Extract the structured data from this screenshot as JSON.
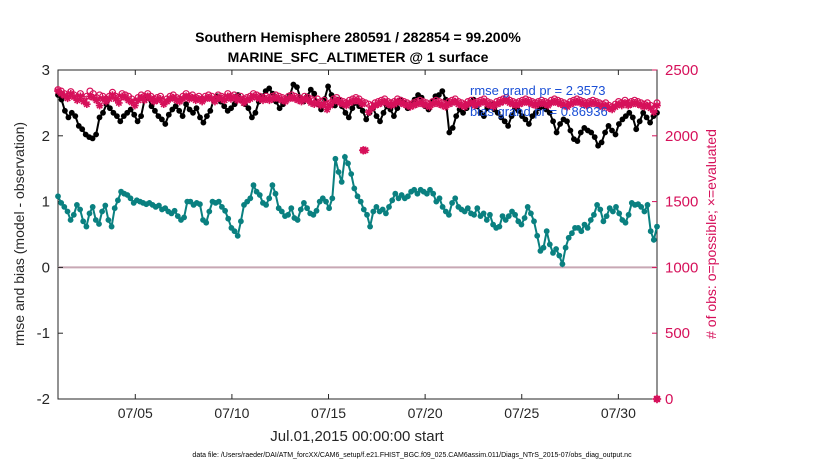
{
  "title_line1": "Southern Hemisphere 280591 / 282854 = 99.200%",
  "title_line2": "MARINE_SFC_ALTIMETER @ 1 surface",
  "footer": "data file: /Users/raeder/DAI/ATM_forcXX/CAM6_setup/f.e21.FHIST_BGC.f09_025.CAM6assim.011/Diags_NTrS_2015-07/obs_diag_output.nc",
  "colors": {
    "rmse": "#000000",
    "bias": "#0a8080",
    "obs": "#d6105a",
    "zero_line": "#c8a8b4",
    "legend_text": "#1a4fd6"
  },
  "chart_data": {
    "type": "line",
    "xlabel": "Jul.01,2015 00:00:00 start",
    "ylabel_left": "rmse and bias (model - observation)",
    "ylabel_right": "# of obs: o=possible; ×=evaluated",
    "xlim": [
      1,
      32
    ],
    "ylim_left": [
      -2,
      3
    ],
    "ylim_right": [
      0,
      2500
    ],
    "xticks": [
      {
        "value": 5,
        "label": "07/05"
      },
      {
        "value": 10,
        "label": "07/10"
      },
      {
        "value": 15,
        "label": "07/15"
      },
      {
        "value": 20,
        "label": "07/20"
      },
      {
        "value": 25,
        "label": "07/25"
      },
      {
        "value": 30,
        "label": "07/30"
      }
    ],
    "yticks_left": [
      "-2",
      "-1",
      "0",
      "1",
      "2",
      "3"
    ],
    "yticks_right": [
      "0",
      "500",
      "1000",
      "1500",
      "2000",
      "2500"
    ],
    "legend": [
      {
        "label": "rmse grand pr = 2.3573",
        "series": "rmse"
      },
      {
        "label": "bias grand pr = 0.86936",
        "series": "bias"
      }
    ],
    "rmse": [
      2.62,
      2.55,
      2.38,
      2.28,
      2.35,
      2.3,
      2.15,
      2.1,
      2.02,
      1.98,
      1.96,
      2.02,
      2.28,
      2.35,
      2.48,
      2.42,
      2.35,
      2.3,
      2.22,
      2.3,
      2.35,
      2.4,
      2.32,
      2.22,
      2.3,
      2.55,
      2.58,
      2.45,
      2.38,
      2.3,
      2.25,
      2.18,
      2.32,
      2.4,
      2.45,
      2.38,
      2.3,
      2.48,
      2.4,
      2.35,
      2.42,
      2.28,
      2.2,
      2.3,
      2.38,
      2.55,
      2.6,
      2.52,
      2.45,
      2.38,
      2.42,
      2.48,
      2.62,
      2.55,
      2.48,
      2.42,
      2.28,
      2.35,
      2.52,
      2.6,
      2.68,
      2.72,
      2.64,
      2.52,
      2.42,
      2.48,
      2.56,
      2.62,
      2.78,
      2.74,
      2.58,
      2.52,
      2.6,
      2.7,
      2.64,
      2.48,
      2.4,
      2.56,
      2.75,
      2.62,
      2.46,
      2.55,
      2.45,
      2.35,
      2.28,
      2.42,
      2.5,
      2.45,
      2.38,
      2.25,
      2.35,
      2.42,
      2.3,
      2.22,
      2.35,
      2.45,
      2.4,
      2.3,
      2.42,
      2.55,
      2.5,
      2.42,
      2.48,
      2.55,
      2.62,
      2.58,
      2.45,
      2.4,
      2.52,
      2.6,
      2.62,
      2.68,
      2.55,
      2.05,
      2.12,
      2.3,
      2.4,
      2.35,
      2.42,
      2.5,
      2.55,
      2.45,
      2.35,
      2.3,
      2.42,
      2.48,
      2.4,
      2.35,
      2.28,
      2.22,
      2.15,
      2.3,
      2.42,
      2.38,
      2.3,
      2.25,
      2.18,
      2.3,
      2.35,
      2.42,
      2.45,
      2.4,
      2.35,
      2.22,
      2.05,
      2.18,
      2.25,
      2.22,
      2.08,
      1.95,
      1.92,
      2.05,
      2.12,
      2.08,
      2.05,
      1.98,
      1.85,
      1.9,
      2.05,
      2.15,
      2.08,
      2.02,
      2.18,
      2.25,
      2.3,
      2.35,
      2.28,
      2.1,
      2.22,
      2.35,
      2.28,
      2.2,
      2.3,
      2.35
    ],
    "bias": [
      1.08,
      0.98,
      0.92,
      0.85,
      0.72,
      0.8,
      0.95,
      0.88,
      0.7,
      0.62,
      0.82,
      0.92,
      0.72,
      0.66,
      0.85,
      0.94,
      0.72,
      0.62,
      0.9,
      1.02,
      1.15,
      1.12,
      1.1,
      1.05,
      0.98,
      1.02,
      1.0,
      0.98,
      0.96,
      0.98,
      0.95,
      0.92,
      0.94,
      0.88,
      0.9,
      0.85,
      0.82,
      0.86,
      0.78,
      0.72,
      0.76,
      1.0,
      1.0,
      0.95,
      0.98,
      0.96,
      0.72,
      0.68,
      0.85,
      1.0,
      0.98,
      1.0,
      0.92,
      0.86,
      0.74,
      0.6,
      0.55,
      0.48,
      0.7,
      0.95,
      1.0,
      1.05,
      1.25,
      1.15,
      1.1,
      0.98,
      0.95,
      1.05,
      1.25,
      1.12,
      0.9,
      0.85,
      0.78,
      0.8,
      0.9,
      0.75,
      0.72,
      0.88,
      0.98,
      0.9,
      0.82,
      0.8,
      0.86,
      1.0,
      1.05,
      1.0,
      0.9,
      1.05,
      1.65,
      1.45,
      1.3,
      1.68,
      1.58,
      1.42,
      1.2,
      1.08,
      1.0,
      0.88,
      0.8,
      0.62,
      0.85,
      0.92,
      0.85,
      0.88,
      0.82,
      0.92,
      1.02,
      1.12,
      1.05,
      1.1,
      1.05,
      1.08,
      1.15,
      1.18,
      1.12,
      1.18,
      1.15,
      1.12,
      1.18,
      1.12,
      1.0,
      1.05,
      0.92,
      0.85,
      0.8,
      0.98,
      1.05,
      0.92,
      0.88,
      0.85,
      0.9,
      0.82,
      0.8,
      0.9,
      0.78,
      0.82,
      0.72,
      0.8,
      0.65,
      0.6,
      0.62,
      0.78,
      0.72,
      0.78,
      0.85,
      0.8,
      0.7,
      0.65,
      0.75,
      0.92,
      0.82,
      0.7,
      0.48,
      0.25,
      0.3,
      0.55,
      0.35,
      0.22,
      0.28,
      0.18,
      0.05,
      0.3,
      0.45,
      0.52,
      0.6,
      0.6,
      0.55,
      0.65,
      0.6,
      0.72,
      0.8,
      0.95,
      0.88,
      0.7,
      0.78,
      0.9,
      0.85,
      0.92,
      0.82,
      0.72,
      0.68,
      0.8,
      0.98,
      0.95,
      0.96,
      0.92,
      0.85,
      0.95,
      0.55,
      0.42,
      0.62
    ],
    "obs_possible": [
      2350,
      2340,
      2320,
      2300,
      2335,
      2310,
      2290,
      2320,
      2280,
      2300,
      2340,
      2320,
      2290,
      2310,
      2300,
      2280,
      2300,
      2330,
      2300,
      2290,
      2320,
      2310,
      2300,
      2280,
      2260,
      2290,
      2310,
      2300,
      2320,
      2300,
      2280,
      2290,
      2300,
      2260,
      2280,
      2300,
      2310,
      2290,
      2280,
      2300,
      2320,
      2300,
      2310,
      2290,
      2300,
      2280,
      2300,
      2310,
      2300,
      2280,
      2310,
      2300,
      2290,
      2320,
      2300,
      2310,
      2290,
      2300,
      2280,
      2290,
      2300,
      2320,
      2310,
      2300,
      2290,
      2300,
      2290,
      2300,
      2310,
      2300,
      2290,
      2280,
      2300,
      2310,
      2300,
      2290,
      2280,
      2300,
      2290,
      2280,
      2270,
      2280,
      2260,
      2270,
      2240,
      2250,
      2280,
      2290,
      2270,
      2260,
      2250,
      2270,
      2280,
      2290,
      2280,
      2260,
      2250,
      2240,
      2230,
      2250,
      2260,
      2270,
      2280,
      2260,
      2250,
      2260,
      2280,
      2270,
      2260,
      2250,
      2240,
      2250,
      2260,
      2270,
      2260,
      2250,
      2240,
      2260,
      2270,
      2260,
      2250,
      2240,
      2260,
      2270,
      2280,
      2260,
      2250,
      2240,
      2260,
      2270,
      2250,
      2260,
      2270,
      2280,
      2260,
      2250,
      2240,
      2260,
      2270,
      2280,
      2290,
      2270,
      2260,
      2250,
      2260,
      2270,
      2280,
      2270,
      2260,
      2250,
      2260,
      2270,
      2260,
      2250,
      2270,
      2280,
      2270,
      2260,
      2250,
      2240,
      2260,
      2270,
      2280,
      2270,
      2260,
      2250,
      2260,
      2270,
      2260,
      2250,
      2240,
      2250,
      2230,
      2220,
      2240,
      2260,
      2250,
      2270,
      2250,
      2260,
      2270,
      2260,
      2250,
      2240,
      2250,
      2230,
      2200,
      2250
    ],
    "obs_evaluated": [
      2340,
      2320,
      2305,
      2285,
      2320,
      2295,
      2270,
      2300,
      2260,
      2240,
      2300,
      2290,
      2270,
      2230,
      2280,
      2260,
      2280,
      2310,
      2280,
      2250,
      2300,
      2290,
      2270,
      2255,
      2230,
      2270,
      2290,
      2270,
      2300,
      2280,
      2260,
      2270,
      2280,
      2240,
      2260,
      2280,
      2290,
      2270,
      2260,
      2280,
      2300,
      2280,
      2290,
      2270,
      2280,
      2260,
      2280,
      2290,
      2280,
      2260,
      2290,
      2280,
      2270,
      2300,
      2280,
      2290,
      2270,
      2280,
      2250,
      2270,
      2280,
      2300,
      2290,
      2280,
      2270,
      2280,
      2270,
      2280,
      2290,
      2280,
      2270,
      2260,
      2280,
      2290,
      2280,
      2270,
      2260,
      2280,
      2270,
      2250,
      2240,
      2250,
      2230,
      2240,
      2200,
      2230,
      2260,
      2270,
      2250,
      2240,
      2230,
      2250,
      2260,
      2270,
      2260,
      2240,
      1890,
      2180,
      2210,
      2230,
      2240,
      2250,
      2260,
      2240,
      2230,
      2240,
      2260,
      2250,
      2240,
      2230,
      2220,
      2230,
      2240,
      2250,
      2240,
      2230,
      2220,
      2240,
      2250,
      2240,
      2230,
      2220,
      2240,
      2250,
      2260,
      2240,
      2230,
      2220,
      2240,
      2250,
      2230,
      2240,
      2250,
      2260,
      2240,
      2230,
      2220,
      2240,
      2250,
      2260,
      2270,
      2250,
      2240,
      2230,
      2240,
      2250,
      2260,
      2250,
      2240,
      2230,
      2240,
      2250,
      2240,
      2230,
      2250,
      2260,
      2250,
      2240,
      2230,
      2220,
      2240,
      2250,
      2260,
      2250,
      2240,
      2230,
      2240,
      2250,
      2240,
      2230,
      2220,
      2230,
      2210,
      2200,
      2220,
      2240,
      2230,
      2250,
      2230,
      2240,
      2250,
      2240,
      2230,
      2220,
      2230,
      2210,
      2180,
      2230
    ],
    "obs_outliers": [
      {
        "x": 16.8,
        "y": 1890
      },
      {
        "x": 32,
        "y": 0
      }
    ]
  }
}
